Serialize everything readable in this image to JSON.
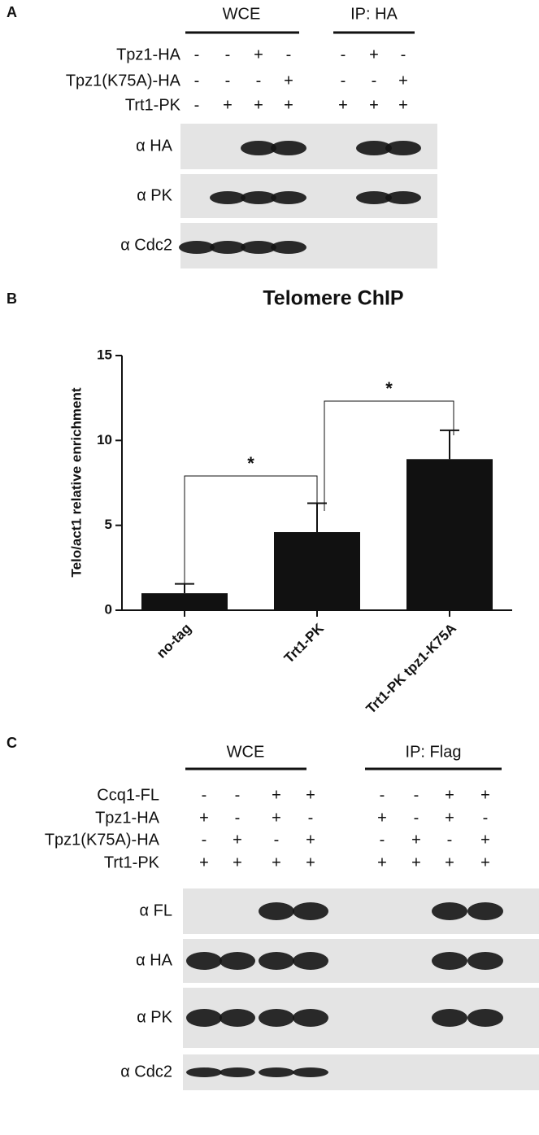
{
  "panel_a": {
    "label": "A",
    "headers": [
      "WCE",
      "IP: HA"
    ],
    "rows": [
      {
        "label": "Tpz1-HA",
        "signs": [
          "-",
          "-",
          "+",
          "-",
          "-",
          "+",
          "-"
        ]
      },
      {
        "label": "Tpz1(K75A)-HA",
        "signs": [
          "-",
          "-",
          "-",
          "+",
          "-",
          "-",
          "+"
        ]
      },
      {
        "label": "Trt1-PK",
        "signs": [
          "-",
          "+",
          "+",
          "+",
          "+",
          "+",
          "+"
        ]
      }
    ],
    "blots": [
      "α HA",
      "α PK",
      "α Cdc2"
    ]
  },
  "chart_data": {
    "type": "bar",
    "panel_label": "B",
    "title": "Telomere ChIP",
    "y_label": "Telo/act1 relative enrichment",
    "categories": [
      "no-tag",
      "Trt1-PK",
      "Trt1-PK tpz1-K75A"
    ],
    "values": [
      1.0,
      4.6,
      8.9
    ],
    "errors": [
      0.55,
      1.7,
      1.7
    ],
    "color": "#111111",
    "ylim": [
      0,
      15
    ],
    "yticks": [
      0,
      5,
      10,
      15
    ],
    "annotations": [
      "*",
      "*"
    ]
  },
  "panel_c": {
    "label": "C",
    "headers": [
      "WCE",
      "IP: Flag"
    ],
    "rows": [
      {
        "label": "Ccq1-FL",
        "signs": [
          "-",
          "-",
          "+",
          "+",
          "-",
          "-",
          "+",
          "+"
        ]
      },
      {
        "label": "Tpz1-HA",
        "signs": [
          "+",
          "-",
          "+",
          "-",
          "+",
          "-",
          "+",
          "-"
        ]
      },
      {
        "label": "Tpz1(K75A)-HA",
        "signs": [
          "-",
          "+",
          "-",
          "+",
          "-",
          "+",
          "-",
          "+"
        ]
      },
      {
        "label": "Trt1-PK",
        "signs": [
          "+",
          "+",
          "+",
          "+",
          "+",
          "+",
          "+",
          "+"
        ]
      }
    ],
    "blots": [
      "α FL",
      "α HA",
      "α PK",
      "α Cdc2"
    ]
  }
}
